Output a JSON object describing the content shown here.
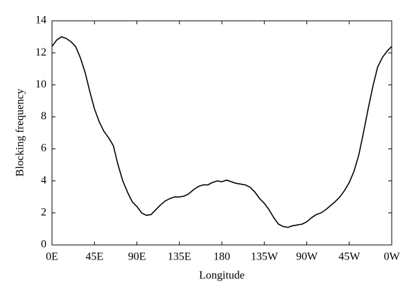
{
  "chart_data": {
    "type": "line",
    "xlabel": "Longitude",
    "ylabel": "Blocking frequency",
    "x": [
      0,
      5,
      10,
      15,
      20,
      25,
      30,
      35,
      40,
      45,
      50,
      55,
      60,
      65,
      70,
      75,
      80,
      85,
      90,
      95,
      100,
      105,
      110,
      115,
      120,
      125,
      130,
      135,
      140,
      145,
      150,
      155,
      160,
      165,
      170,
      175,
      180,
      185,
      190,
      195,
      200,
      205,
      210,
      215,
      220,
      225,
      230,
      235,
      240,
      245,
      250,
      255,
      260,
      265,
      270,
      275,
      280,
      285,
      290,
      295,
      300,
      305,
      310,
      315,
      320,
      325,
      330,
      335,
      340,
      345,
      350,
      355,
      360
    ],
    "series": [
      {
        "name": "Blocking frequency",
        "color": "#000000",
        "values": [
          12.4,
          12.8,
          13.0,
          12.9,
          12.7,
          12.4,
          11.7,
          10.8,
          9.6,
          8.5,
          7.7,
          7.1,
          6.7,
          6.2,
          5.0,
          4.0,
          3.3,
          2.7,
          2.4,
          2.0,
          1.85,
          1.9,
          2.2,
          2.5,
          2.75,
          2.9,
          3.0,
          3.0,
          3.05,
          3.2,
          3.45,
          3.65,
          3.75,
          3.75,
          3.9,
          4.0,
          3.95,
          4.05,
          3.95,
          3.85,
          3.8,
          3.75,
          3.6,
          3.3,
          2.9,
          2.6,
          2.2,
          1.7,
          1.3,
          1.15,
          1.1,
          1.2,
          1.25,
          1.3,
          1.45,
          1.7,
          1.9,
          2.0,
          2.2,
          2.45,
          2.7,
          3.0,
          3.4,
          3.9,
          4.6,
          5.6,
          7.0,
          8.5,
          9.9,
          11.1,
          11.7,
          12.1,
          12.4
        ]
      }
    ],
    "xlim": [
      0,
      360
    ],
    "xticks": [
      {
        "value": 0,
        "label": "0E"
      },
      {
        "value": 45,
        "label": "45E"
      },
      {
        "value": 90,
        "label": "90E"
      },
      {
        "value": 135,
        "label": "135E"
      },
      180,
      {
        "value": 225,
        "label": "135W"
      },
      {
        "value": 270,
        "label": "90W"
      },
      {
        "value": 315,
        "label": "45W"
      },
      {
        "value": 360,
        "label": "0W"
      }
    ],
    "ylim": [
      0,
      14
    ],
    "yticks": [
      0,
      2,
      4,
      6,
      8,
      10,
      12,
      14
    ]
  }
}
